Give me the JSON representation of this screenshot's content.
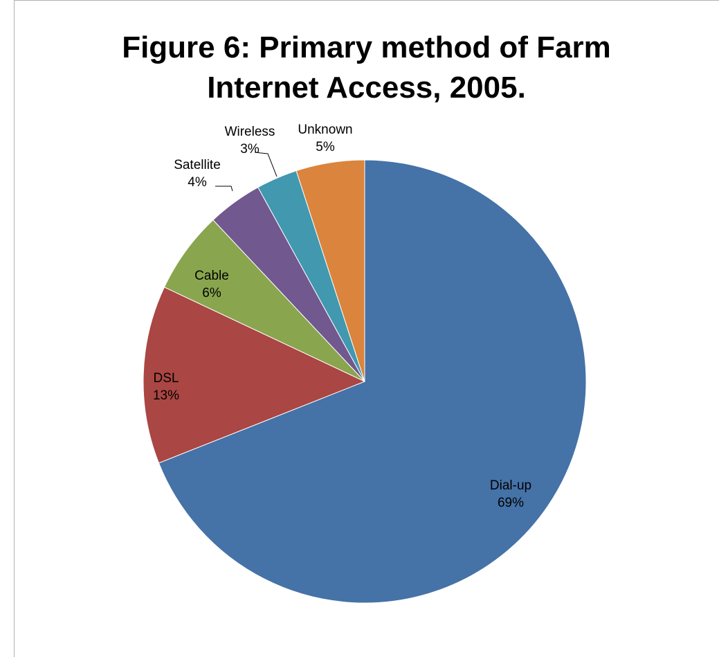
{
  "chart_data": {
    "type": "pie",
    "title": "Figure 6: Primary method of Farm\nInternet Access, 2005.",
    "start": "12 o'clock, clockwise",
    "legend": "none",
    "slices": [
      {
        "label": "Dial-up",
        "value": 69,
        "display": "69%",
        "color": "#4572A7"
      },
      {
        "label": "DSL",
        "value": 13,
        "display": "13%",
        "color": "#AA4643"
      },
      {
        "label": "Cable",
        "value": 6,
        "display": "6%",
        "color": "#89A54E"
      },
      {
        "label": "Satellite",
        "value": 4,
        "display": "4%",
        "color": "#71588F"
      },
      {
        "label": "Wireless",
        "value": 3,
        "display": "3%",
        "color": "#4198AF"
      },
      {
        "label": "Unknown",
        "value": 5,
        "display": "5%",
        "color": "#DB843D"
      }
    ]
  }
}
